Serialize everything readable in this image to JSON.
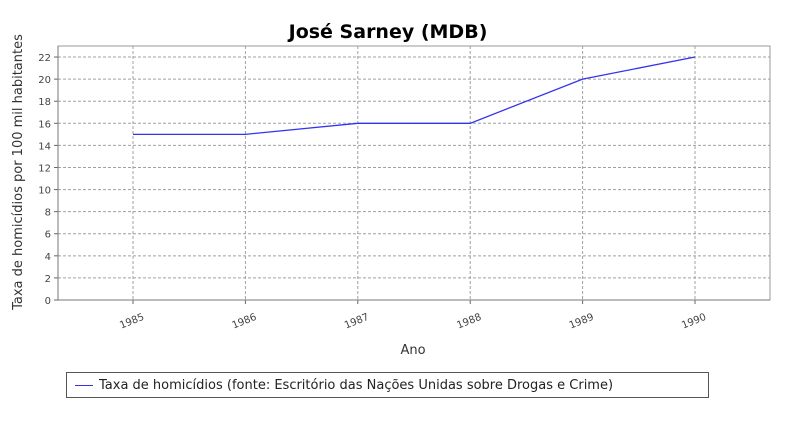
{
  "chart_data": {
    "type": "line",
    "title": "José Sarney (MDB)",
    "xlabel": "Ano",
    "ylabel": "Taxa de homicídios por 100 mil habitantes",
    "categories": [
      "1985",
      "1986",
      "1987",
      "1988",
      "1989",
      "1990"
    ],
    "series": [
      {
        "name": "Taxa de homicídios (fonte: Escritório das Nações Unidas sobre Drogas e Crime)",
        "values": [
          15,
          15,
          16,
          16,
          20,
          22
        ]
      }
    ],
    "ylim": [
      0,
      23
    ],
    "yticks": [
      0,
      2,
      4,
      6,
      8,
      10,
      12,
      14,
      16,
      18,
      20,
      22
    ],
    "grid": true,
    "legend_position": "bottom",
    "colors": {
      "series": "#3333ee",
      "grid": "#a0a0a0",
      "plot_bg": "#ffffff"
    }
  }
}
